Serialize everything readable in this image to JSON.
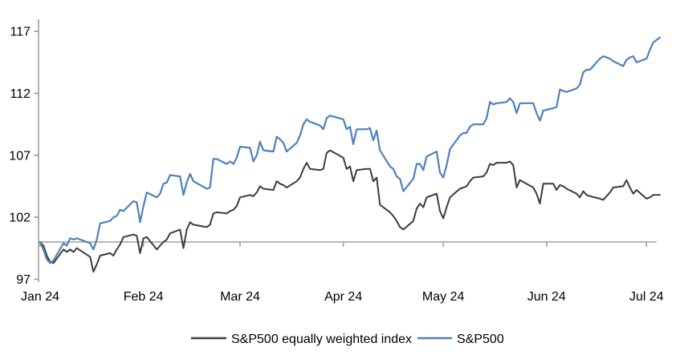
{
  "page": {
    "background": "#ffffff"
  },
  "chart_data": {
    "type": "line",
    "title": "",
    "xlabel": "",
    "ylabel": "",
    "grid": "off",
    "plot_background": "#ffffff",
    "axis_color": "#a0a0a0",
    "baseline_value": 100,
    "ylim": [
      97,
      117
    ],
    "y_axis": {
      "ticks": [
        117,
        112,
        107,
        102,
        97
      ]
    },
    "x_axis": {
      "tick_labels": [
        "Jan 24",
        "Feb 24",
        "Mar 24",
        "Apr 24",
        "May 24",
        "Jun 24",
        "Jul 24"
      ],
      "tick_day_offsets": [
        0,
        31,
        60,
        91,
        121,
        152,
        182
      ]
    },
    "legend": {
      "position": "bottom-center"
    },
    "dates": [
      "1-1",
      "1-2",
      "1-3",
      "1-4",
      "1-5",
      "1-8",
      "1-9",
      "1-10",
      "1-11",
      "1-12",
      "1-16",
      "1-17",
      "1-18",
      "1-19",
      "1-22",
      "1-23",
      "1-24",
      "1-25",
      "1-26",
      "1-29",
      "1-30",
      "1-31",
      "2-1",
      "2-2",
      "2-5",
      "2-6",
      "2-7",
      "2-8",
      "2-9",
      "2-12",
      "2-13",
      "2-14",
      "2-15",
      "2-16",
      "2-20",
      "2-21",
      "2-22",
      "2-23",
      "2-26",
      "2-27",
      "2-28",
      "2-29",
      "3-1",
      "3-4",
      "3-5",
      "3-6",
      "3-7",
      "3-8",
      "3-11",
      "3-12",
      "3-13",
      "3-14",
      "3-15",
      "3-18",
      "3-19",
      "3-20",
      "3-21",
      "3-22",
      "3-25",
      "3-26",
      "3-27",
      "3-28",
      "4-1",
      "4-2",
      "4-3",
      "4-4",
      "4-5",
      "4-8",
      "4-9",
      "4-10",
      "4-11",
      "4-12",
      "4-15",
      "4-16",
      "4-17",
      "4-18",
      "4-19",
      "4-22",
      "4-23",
      "4-24",
      "4-25",
      "4-26",
      "4-29",
      "4-30",
      "5-1",
      "5-2",
      "5-3",
      "5-6",
      "5-7",
      "5-8",
      "5-9",
      "5-10",
      "5-13",
      "5-14",
      "5-15",
      "5-16",
      "5-17",
      "5-20",
      "5-21",
      "5-22",
      "5-23",
      "5-24",
      "5-28",
      "5-29",
      "5-30",
      "5-31",
      "6-3",
      "6-4",
      "6-5",
      "6-6",
      "6-7",
      "6-10",
      "6-11",
      "6-12",
      "6-13",
      "6-14",
      "6-17",
      "6-18",
      "6-20",
      "6-21",
      "6-24",
      "6-25",
      "6-26",
      "6-27",
      "6-28",
      "7-1",
      "7-2",
      "7-3",
      "7-5"
    ],
    "series": [
      {
        "name": "S&P500 equally weighted index",
        "color": "#3c3c3c",
        "stroke_width": 2,
        "values": [
          100.0,
          99.7,
          98.9,
          98.4,
          98.3,
          99.4,
          99.2,
          99.4,
          99.2,
          99.5,
          98.8,
          97.6,
          98.2,
          98.9,
          99.1,
          98.9,
          99.4,
          99.8,
          100.4,
          100.6,
          100.5,
          99.1,
          100.3,
          100.4,
          99.4,
          99.7,
          100.0,
          100.2,
          100.7,
          101.0,
          99.5,
          101.0,
          101.6,
          101.4,
          101.2,
          101.4,
          102.3,
          102.4,
          102.3,
          102.5,
          102.6,
          102.9,
          103.6,
          103.8,
          103.7,
          104.0,
          104.5,
          104.3,
          104.2,
          104.9,
          104.7,
          104.6,
          104.4,
          104.9,
          105.2,
          105.9,
          106.4,
          105.9,
          105.8,
          105.9,
          107.2,
          107.4,
          106.8,
          105.9,
          106.1,
          104.9,
          105.8,
          105.9,
          105.9,
          104.9,
          105.2,
          103.0,
          102.4,
          102.1,
          101.7,
          101.2,
          101.0,
          101.7,
          102.7,
          103.1,
          102.8,
          103.6,
          103.9,
          102.5,
          101.9,
          102.8,
          103.6,
          104.3,
          104.4,
          104.5,
          104.9,
          105.2,
          105.3,
          105.6,
          106.3,
          106.2,
          106.4,
          106.4,
          106.5,
          106.2,
          104.4,
          105.0,
          104.4,
          103.9,
          103.1,
          104.7,
          104.7,
          104.2,
          104.6,
          104.5,
          104.3,
          103.9,
          103.6,
          104.1,
          103.8,
          103.7,
          103.5,
          103.4,
          104.0,
          104.4,
          104.5,
          105.0,
          104.4,
          103.9,
          104.2,
          103.5,
          103.6,
          103.8,
          103.8
        ]
      },
      {
        "name": "S&P500",
        "color": "#4e81bb",
        "stroke_width": 2.2,
        "values": [
          100.0,
          99.4,
          98.6,
          98.3,
          98.5,
          99.9,
          99.7,
          100.3,
          100.2,
          100.3,
          99.9,
          99.4,
          100.2,
          101.5,
          101.7,
          102.0,
          102.1,
          102.6,
          102.5,
          103.3,
          103.2,
          101.6,
          102.9,
          104.0,
          103.6,
          103.9,
          104.7,
          104.8,
          105.4,
          105.3,
          103.8,
          104.8,
          105.5,
          104.9,
          104.3,
          104.4,
          106.7,
          106.7,
          106.3,
          106.5,
          106.3,
          106.8,
          107.7,
          107.6,
          106.5,
          107.0,
          108.1,
          107.4,
          107.3,
          108.5,
          108.3,
          108.0,
          107.3,
          108.0,
          108.6,
          109.5,
          109.9,
          109.7,
          109.4,
          109.1,
          110.0,
          110.2,
          109.9,
          109.1,
          109.3,
          107.9,
          109.1,
          109.1,
          109.2,
          108.2,
          109.0,
          107.4,
          106.1,
          105.9,
          105.3,
          105.1,
          104.1,
          105.1,
          106.3,
          106.3,
          105.8,
          106.9,
          107.3,
          105.6,
          105.2,
          106.2,
          107.5,
          108.6,
          108.8,
          108.8,
          109.3,
          109.5,
          109.5,
          110.0,
          111.3,
          111.1,
          111.2,
          111.3,
          111.6,
          111.3,
          110.4,
          111.2,
          111.2,
          110.4,
          109.8,
          110.6,
          110.8,
          110.9,
          112.3,
          112.2,
          112.1,
          112.4,
          112.7,
          113.7,
          113.9,
          113.9,
          114.8,
          115.0,
          114.8,
          114.6,
          114.2,
          114.7,
          114.9,
          115.0,
          114.5,
          114.8,
          115.5,
          116.1,
          116.5
        ]
      }
    ]
  }
}
